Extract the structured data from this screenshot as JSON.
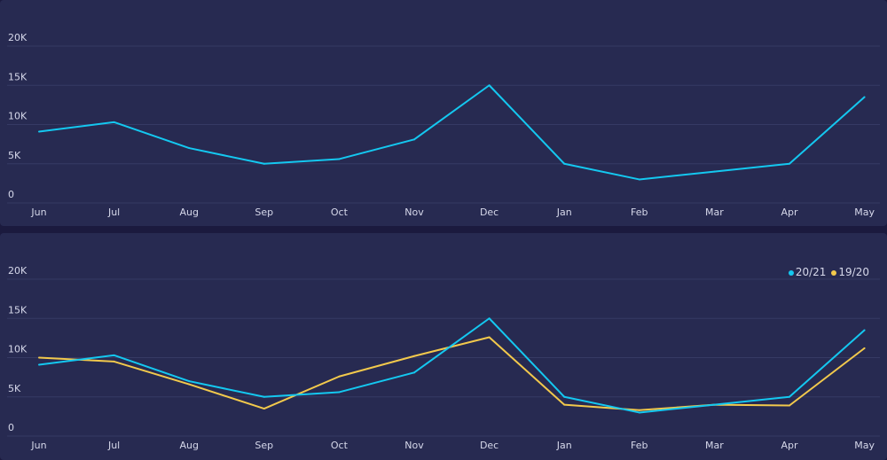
{
  "chart_data": [
    {
      "type": "line",
      "categories": [
        "Jun",
        "Jul",
        "Aug",
        "Sep",
        "Oct",
        "Nov",
        "Dec",
        "Jan",
        "Feb",
        "Mar",
        "Apr",
        "May"
      ],
      "yticks": [
        "0",
        "5K",
        "10K",
        "15K",
        "20K"
      ],
      "ylim": [
        0,
        20000
      ],
      "grid": true,
      "series": [
        {
          "color": "#14c8f0",
          "values": [
            9100,
            10300,
            7000,
            5000,
            5600,
            8100,
            15000,
            5000,
            3000,
            4000,
            5000,
            13500
          ]
        }
      ]
    },
    {
      "type": "line",
      "categories": [
        "Jun",
        "Jul",
        "Aug",
        "Sep",
        "Oct",
        "Nov",
        "Dec",
        "Jan",
        "Feb",
        "Mar",
        "Apr",
        "May"
      ],
      "yticks": [
        "0",
        "5K",
        "10K",
        "15K",
        "20K"
      ],
      "ylim": [
        0,
        20000
      ],
      "grid": true,
      "legend": "top-right",
      "series": [
        {
          "name": "20/21",
          "color": "#14c8f0",
          "values": [
            9100,
            10300,
            7000,
            5000,
            5600,
            8100,
            15000,
            5000,
            3000,
            4000,
            5000,
            13500
          ]
        },
        {
          "name": "19/20",
          "color": "#f2c94c",
          "values": [
            10000,
            9500,
            6600,
            3500,
            7600,
            10200,
            12600,
            4000,
            3300,
            4000,
            3900,
            11200
          ]
        }
      ]
    }
  ]
}
